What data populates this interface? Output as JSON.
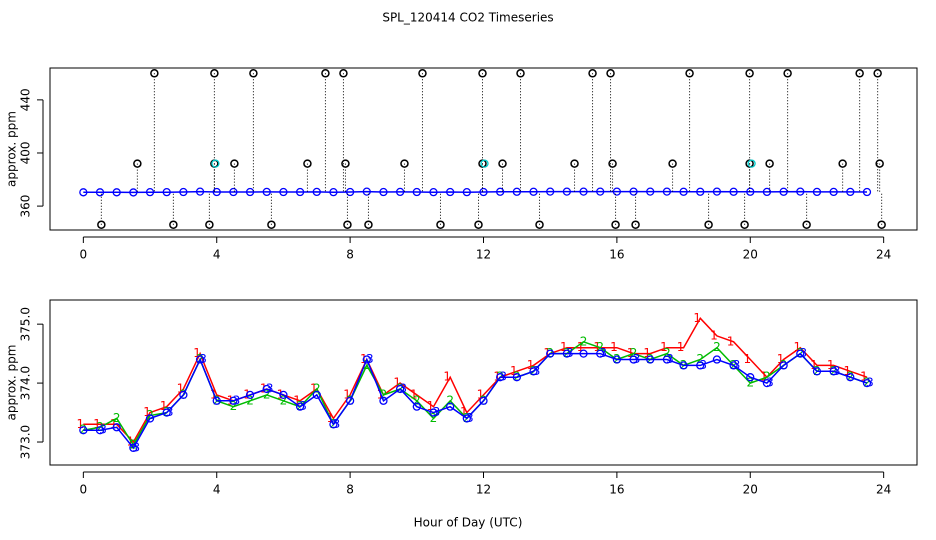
{
  "chart_data": [
    {
      "type": "timeseries",
      "title": "SPL_120414  CO2 Timeseries",
      "ylabel": "approx. ppm",
      "xlim": [
        -1,
        25
      ],
      "xticks": [
        0,
        4,
        8,
        12,
        16,
        20,
        24
      ],
      "ylim": [
        342,
        464
      ],
      "yticks": [
        360,
        400,
        440
      ],
      "series": [
        {
          "color": "#0000ff",
          "marker": "circle",
          "line": true,
          "x": [
            0,
            0.5,
            1,
            1.5,
            2,
            2.5,
            3,
            3.5,
            4,
            4.5,
            5,
            5.5,
            6,
            6.5,
            7,
            7.5,
            8,
            8.5,
            9,
            9.5,
            10,
            10.5,
            11,
            11.5,
            12,
            12.5,
            13,
            13.5,
            14,
            14.5,
            15,
            15.5,
            16,
            16.5,
            17,
            17.5,
            18,
            18.5,
            19,
            19.5,
            20,
            20.5,
            21,
            21.5,
            22,
            22.5,
            23,
            23.5
          ],
          "values": [
            370.4,
            370.4,
            370.4,
            370.3,
            370.5,
            370.5,
            370.6,
            370.9,
            370.6,
            370.6,
            370.6,
            370.7,
            370.6,
            370.6,
            370.7,
            370.5,
            370.6,
            370.9,
            370.6,
            370.7,
            370.6,
            370.5,
            370.6,
            370.5,
            370.6,
            370.8,
            370.8,
            370.8,
            370.9,
            370.9,
            370.9,
            370.9,
            370.9,
            370.9,
            370.9,
            370.9,
            370.8,
            370.8,
            370.9,
            370.8,
            370.8,
            370.7,
            370.8,
            370.9,
            370.7,
            370.7,
            370.7,
            370.6
          ]
        },
        {
          "color": "#000000",
          "marker": "outlier",
          "line": false,
          "x": [
            2.13,
            3.93,
            5.1,
            7.26,
            7.8,
            10.17,
            11.97,
            13.11,
            15.27,
            15.81,
            18.18,
            19.98,
            21.12,
            23.28,
            23.82,
            1.62,
            3.93,
            4.53,
            6.72,
            7.86,
            9.63,
            11.97,
            12.57,
            14.73,
            15.87,
            17.67,
            19.98,
            20.58,
            22.77,
            23.88,
            0.54,
            2.7,
            3.78,
            5.64,
            7.92,
            8.55,
            10.71,
            11.85,
            13.68,
            15.96,
            16.56,
            18.75,
            19.83,
            21.69,
            23.94
          ],
          "values": [
            460,
            460,
            460,
            460,
            460,
            460,
            460,
            460,
            460,
            460,
            460,
            460,
            460,
            460,
            460,
            392,
            392,
            392,
            392,
            392,
            392,
            392,
            392,
            392,
            392,
            392,
            392,
            392,
            392,
            392,
            346,
            346,
            346,
            346,
            346,
            346,
            346,
            346,
            346,
            346,
            346,
            346,
            346,
            346,
            346
          ]
        },
        {
          "color": "#00cccc",
          "marker": "circle",
          "line": false,
          "x": [
            3.96,
            12.03,
            20.04
          ],
          "values": [
            392,
            392,
            392
          ]
        }
      ]
    },
    {
      "type": "timeseries",
      "ylabel": "approx. ppm",
      "xlabel": "Hour of Day (UTC)",
      "xlim": [
        -1,
        25
      ],
      "xticks": [
        0,
        4,
        8,
        12,
        16,
        20,
        24
      ],
      "ylim": [
        372.61,
        375.41
      ],
      "yticks": [
        {
          "value": 373,
          "label": "373.0"
        },
        {
          "value": 374,
          "label": "374.0"
        },
        {
          "value": 375,
          "label": "375.0"
        }
      ],
      "x": [
        0,
        0.5,
        1,
        1.5,
        2,
        2.5,
        3,
        3.5,
        4,
        4.5,
        5,
        5.5,
        6,
        6.5,
        7,
        7.5,
        8,
        8.5,
        9,
        9.5,
        10,
        10.5,
        11,
        11.5,
        12,
        12.5,
        13,
        13.5,
        14,
        14.5,
        15,
        15.5,
        16,
        16.5,
        17,
        17.5,
        18,
        18.5,
        19,
        19.5,
        20,
        20.5,
        21,
        21.5,
        22,
        22.5,
        23,
        23.5
      ],
      "series": [
        {
          "name": "1",
          "color": "#ff0000",
          "marker": "digit",
          "values": [
            373.3,
            373.3,
            373.3,
            373.0,
            373.5,
            373.6,
            373.9,
            374.5,
            373.8,
            373.7,
            373.8,
            373.9,
            373.8,
            373.7,
            373.9,
            373.4,
            373.8,
            374.4,
            373.8,
            374.0,
            373.8,
            373.6,
            374.1,
            373.5,
            373.8,
            374.1,
            374.2,
            374.3,
            374.5,
            374.6,
            374.6,
            374.6,
            374.6,
            374.5,
            374.5,
            374.6,
            374.6,
            375.1,
            374.8,
            374.7,
            374.4,
            374.1,
            374.4,
            374.6,
            374.3,
            374.3,
            374.2,
            374.1
          ]
        },
        {
          "name": "2",
          "color": "#00bb00",
          "marker": "digit",
          "values": [
            373.2,
            373.25,
            373.4,
            372.95,
            373.45,
            373.5,
            373.8,
            374.4,
            373.7,
            373.6,
            373.7,
            373.8,
            373.7,
            373.6,
            373.9,
            373.3,
            373.7,
            374.3,
            373.8,
            373.9,
            373.7,
            373.4,
            373.7,
            373.4,
            373.7,
            374.1,
            374.1,
            374.2,
            374.5,
            374.5,
            374.7,
            374.6,
            374.4,
            374.5,
            374.4,
            374.5,
            374.3,
            374.4,
            374.6,
            374.3,
            374.0,
            374.1,
            374.3,
            374.5,
            374.2,
            374.2,
            374.1,
            374.0
          ]
        },
        {
          "name": "3",
          "color": "#0000ff",
          "marker": "circle-digit",
          "values": [
            373.2,
            373.2,
            373.25,
            372.9,
            373.4,
            373.5,
            373.8,
            374.4,
            373.7,
            373.7,
            373.8,
            373.9,
            373.8,
            373.6,
            373.8,
            373.3,
            373.7,
            374.4,
            373.7,
            373.9,
            373.6,
            373.5,
            373.6,
            373.4,
            373.7,
            374.1,
            374.1,
            374.2,
            374.5,
            374.5,
            374.5,
            374.5,
            374.4,
            374.4,
            374.4,
            374.4,
            374.3,
            374.3,
            374.4,
            374.3,
            374.1,
            374.0,
            374.3,
            374.5,
            374.2,
            374.2,
            374.1,
            374.0
          ]
        }
      ]
    }
  ]
}
